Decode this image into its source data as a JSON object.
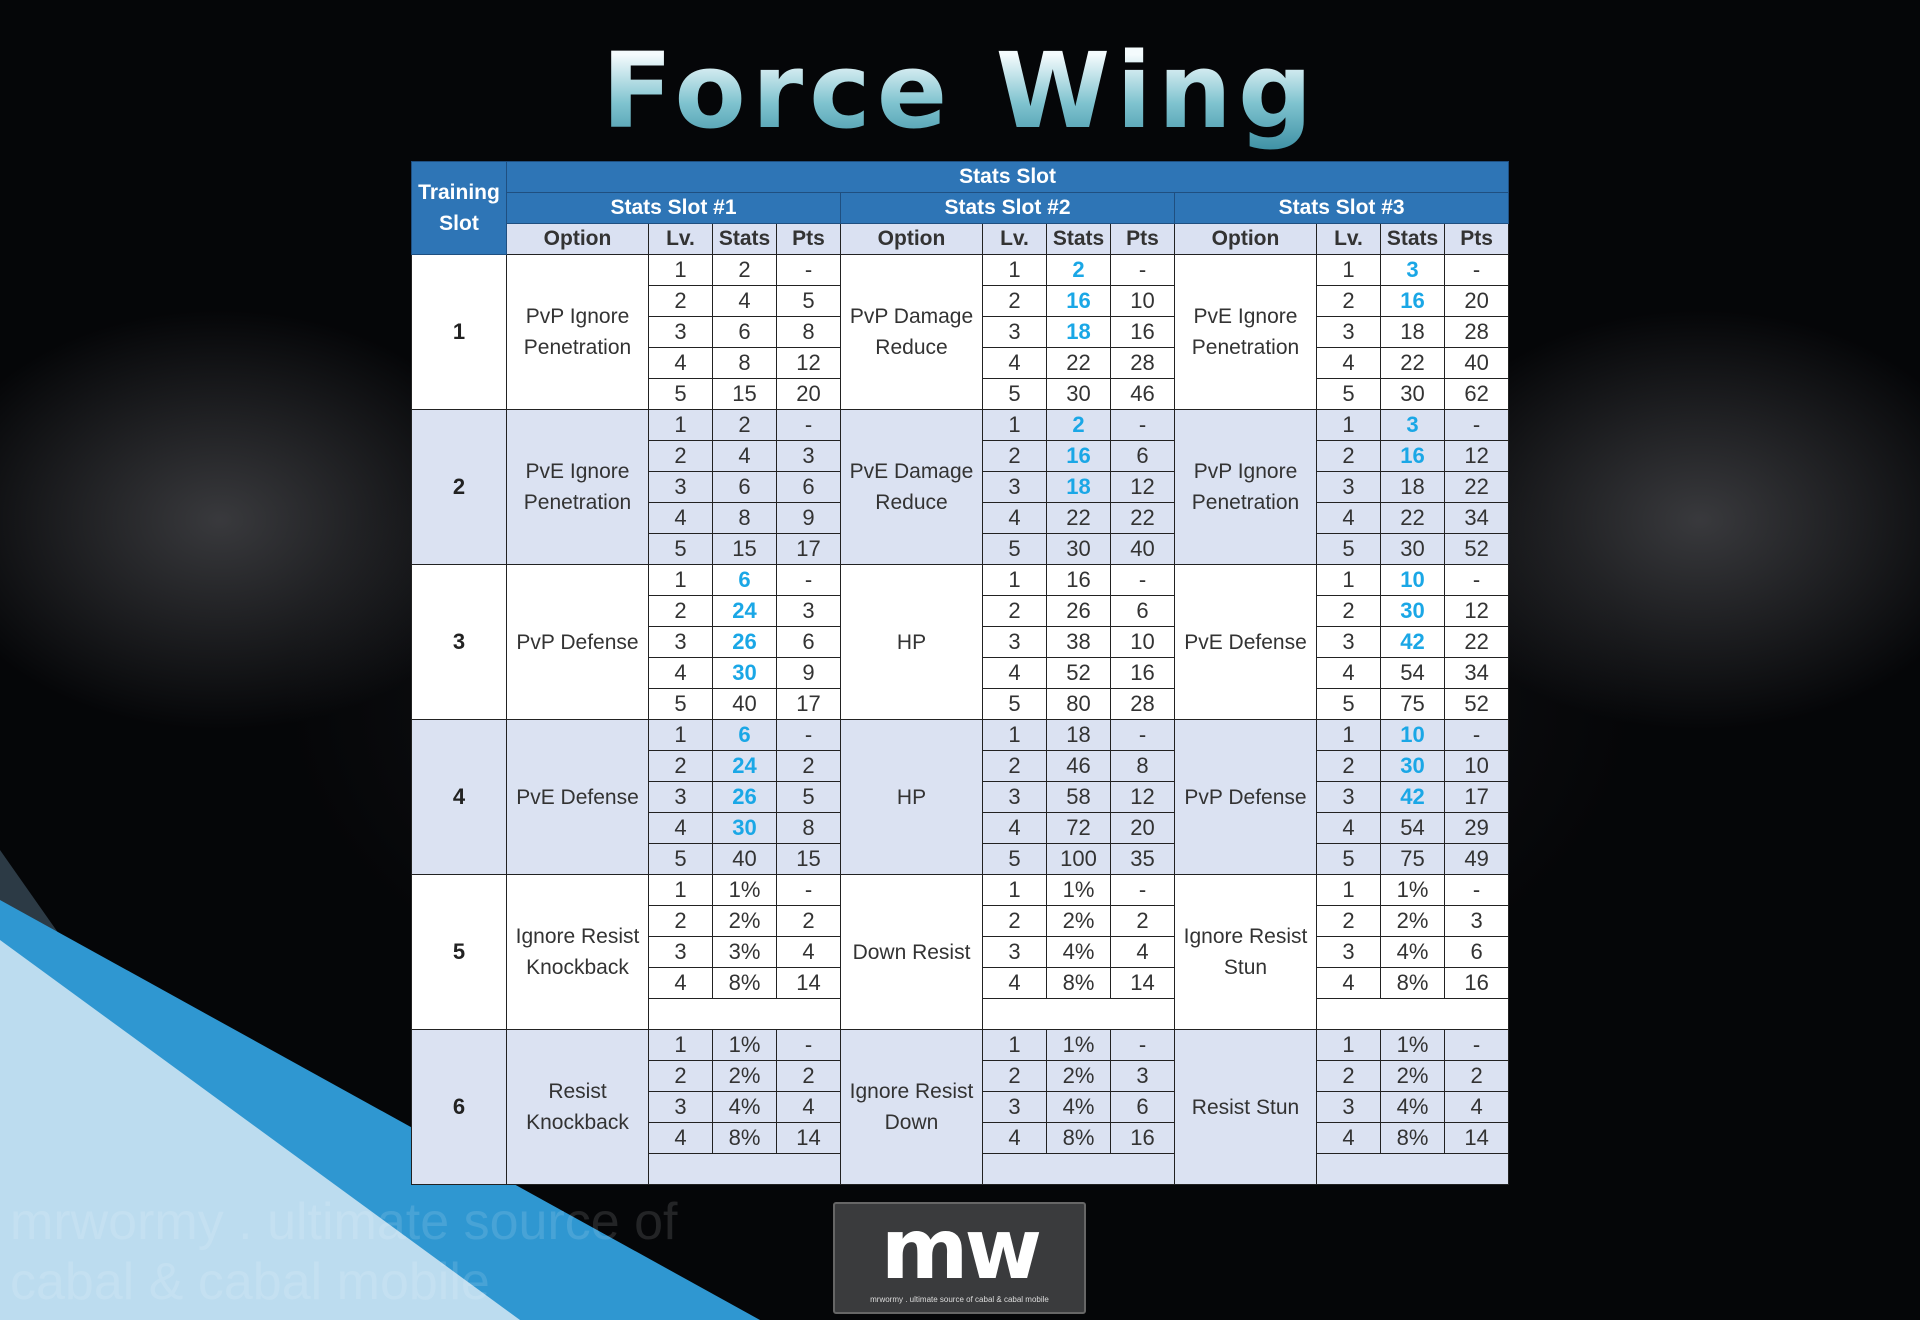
{
  "title": "Force Wing",
  "header": {
    "training_slot": "Training Slot",
    "stats_slot": "Stats Slot",
    "slots": [
      "Stats Slot #1",
      "Stats Slot #2",
      "Stats Slot #3"
    ],
    "columns": [
      "Option",
      "Lv.",
      "Stats",
      "Pts"
    ]
  },
  "highlight_color": "#1aa7e6",
  "header_color": "#2e75b6",
  "training_slots": [
    {
      "slot": "1",
      "options": [
        {
          "name": "PvP Ignore Penetration",
          "rows": [
            [
              "1",
              "2",
              "-",
              false
            ],
            [
              "2",
              "4",
              "5",
              false
            ],
            [
              "3",
              "6",
              "8",
              false
            ],
            [
              "4",
              "8",
              "12",
              false
            ],
            [
              "5",
              "15",
              "20",
              false
            ]
          ]
        },
        {
          "name": "PvP Damage Reduce",
          "rows": [
            [
              "1",
              "2",
              "-",
              true
            ],
            [
              "2",
              "16",
              "10",
              true
            ],
            [
              "3",
              "18",
              "16",
              true
            ],
            [
              "4",
              "22",
              "28",
              false
            ],
            [
              "5",
              "30",
              "46",
              false
            ]
          ]
        },
        {
          "name": "PvE Ignore Penetration",
          "rows": [
            [
              "1",
              "3",
              "-",
              true
            ],
            [
              "2",
              "16",
              "20",
              true
            ],
            [
              "3",
              "18",
              "28",
              false
            ],
            [
              "4",
              "22",
              "40",
              false
            ],
            [
              "5",
              "30",
              "62",
              false
            ]
          ]
        }
      ]
    },
    {
      "slot": "2",
      "options": [
        {
          "name": "PvE Ignore Penetration",
          "rows": [
            [
              "1",
              "2",
              "-",
              false
            ],
            [
              "2",
              "4",
              "3",
              false
            ],
            [
              "3",
              "6",
              "6",
              false
            ],
            [
              "4",
              "8",
              "9",
              false
            ],
            [
              "5",
              "15",
              "17",
              false
            ]
          ]
        },
        {
          "name": "PvE Damage Reduce",
          "rows": [
            [
              "1",
              "2",
              "-",
              true
            ],
            [
              "2",
              "16",
              "6",
              true
            ],
            [
              "3",
              "18",
              "12",
              true
            ],
            [
              "4",
              "22",
              "22",
              false
            ],
            [
              "5",
              "30",
              "40",
              false
            ]
          ]
        },
        {
          "name": "PvP Ignore Penetration",
          "rows": [
            [
              "1",
              "3",
              "-",
              true
            ],
            [
              "2",
              "16",
              "12",
              true
            ],
            [
              "3",
              "18",
              "22",
              false
            ],
            [
              "4",
              "22",
              "34",
              false
            ],
            [
              "5",
              "30",
              "52",
              false
            ]
          ]
        }
      ]
    },
    {
      "slot": "3",
      "options": [
        {
          "name": "PvP Defense",
          "rows": [
            [
              "1",
              "6",
              "-",
              true
            ],
            [
              "2",
              "24",
              "3",
              true
            ],
            [
              "3",
              "26",
              "6",
              true
            ],
            [
              "4",
              "30",
              "9",
              true
            ],
            [
              "5",
              "40",
              "17",
              false
            ]
          ]
        },
        {
          "name": "HP",
          "rows": [
            [
              "1",
              "16",
              "-",
              false
            ],
            [
              "2",
              "26",
              "6",
              false
            ],
            [
              "3",
              "38",
              "10",
              false
            ],
            [
              "4",
              "52",
              "16",
              false
            ],
            [
              "5",
              "80",
              "28",
              false
            ]
          ]
        },
        {
          "name": "PvE Defense",
          "rows": [
            [
              "1",
              "10",
              "-",
              true
            ],
            [
              "2",
              "30",
              "12",
              true
            ],
            [
              "3",
              "42",
              "22",
              true
            ],
            [
              "4",
              "54",
              "34",
              false
            ],
            [
              "5",
              "75",
              "52",
              false
            ]
          ]
        }
      ]
    },
    {
      "slot": "4",
      "options": [
        {
          "name": "PvE Defense",
          "rows": [
            [
              "1",
              "6",
              "-",
              true
            ],
            [
              "2",
              "24",
              "2",
              true
            ],
            [
              "3",
              "26",
              "5",
              true
            ],
            [
              "4",
              "30",
              "8",
              true
            ],
            [
              "5",
              "40",
              "15",
              false
            ]
          ]
        },
        {
          "name": "HP",
          "rows": [
            [
              "1",
              "18",
              "-",
              false
            ],
            [
              "2",
              "46",
              "8",
              false
            ],
            [
              "3",
              "58",
              "12",
              false
            ],
            [
              "4",
              "72",
              "20",
              false
            ],
            [
              "5",
              "100",
              "35",
              false
            ]
          ]
        },
        {
          "name": "PvP Defense",
          "rows": [
            [
              "1",
              "10",
              "-",
              true
            ],
            [
              "2",
              "30",
              "10",
              true
            ],
            [
              "3",
              "42",
              "17",
              true
            ],
            [
              "4",
              "54",
              "29",
              false
            ],
            [
              "5",
              "75",
              "49",
              false
            ]
          ]
        }
      ]
    },
    {
      "slot": "5",
      "options": [
        {
          "name": "Ignore Resist Knockback",
          "rows": [
            [
              "1",
              "1%",
              "-",
              false
            ],
            [
              "2",
              "2%",
              "2",
              false
            ],
            [
              "3",
              "3%",
              "4",
              false
            ],
            [
              "4",
              "8%",
              "14",
              false
            ]
          ]
        },
        {
          "name": "Down Resist",
          "rows": [
            [
              "1",
              "1%",
              "-",
              false
            ],
            [
              "2",
              "2%",
              "2",
              false
            ],
            [
              "3",
              "4%",
              "4",
              false
            ],
            [
              "4",
              "8%",
              "14",
              false
            ]
          ]
        },
        {
          "name": "Ignore Resist Stun",
          "rows": [
            [
              "1",
              "1%",
              "-",
              false
            ],
            [
              "2",
              "2%",
              "3",
              false
            ],
            [
              "3",
              "4%",
              "6",
              false
            ],
            [
              "4",
              "8%",
              "16",
              false
            ]
          ]
        }
      ]
    },
    {
      "slot": "6",
      "options": [
        {
          "name": "Resist Knockback",
          "rows": [
            [
              "1",
              "1%",
              "-",
              false
            ],
            [
              "2",
              "2%",
              "2",
              false
            ],
            [
              "3",
              "4%",
              "4",
              false
            ],
            [
              "4",
              "8%",
              "14",
              false
            ]
          ]
        },
        {
          "name": "Ignore Resist Down",
          "rows": [
            [
              "1",
              "1%",
              "-",
              false
            ],
            [
              "2",
              "2%",
              "3",
              false
            ],
            [
              "3",
              "4%",
              "6",
              false
            ],
            [
              "4",
              "8%",
              "16",
              false
            ]
          ]
        },
        {
          "name": "Resist Stun",
          "rows": [
            [
              "1",
              "1%",
              "-",
              false
            ],
            [
              "2",
              "2%",
              "2",
              false
            ],
            [
              "3",
              "4%",
              "4",
              false
            ],
            [
              "4",
              "8%",
              "14",
              false
            ]
          ]
        }
      ]
    }
  ],
  "logo": {
    "mark": "mw",
    "tagline": "mrwormy . ultimate source of cabal & cabal mobile"
  },
  "watermark": "mrwormy . ultimate source of cabal & cabal mobile"
}
